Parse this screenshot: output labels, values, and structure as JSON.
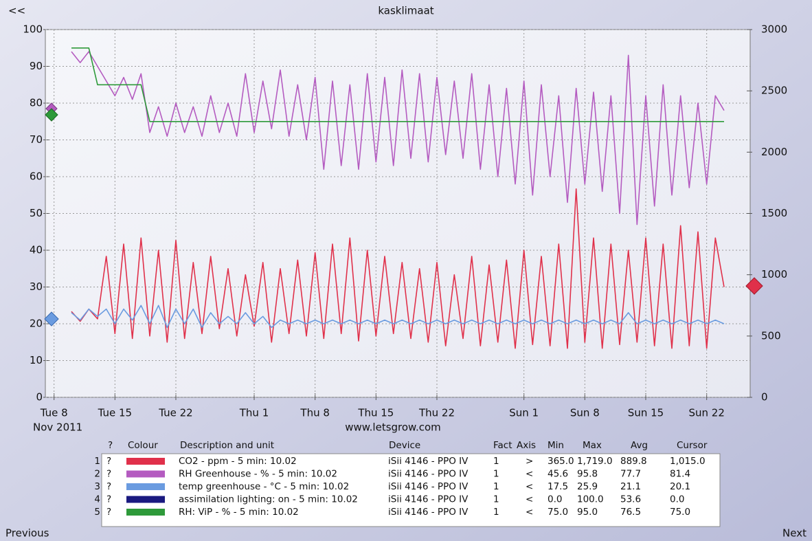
{
  "top_link": "<<",
  "chart_data": {
    "type": "line",
    "title": "kasklimaat",
    "subtitle": "www.letsgrow.com",
    "x_period_label": "Nov 2011",
    "x": [
      "2011-11-10",
      "2011-11-11",
      "2011-11-12",
      "2011-11-13",
      "2011-11-14",
      "2011-11-15",
      "2011-11-16",
      "2011-11-17",
      "2011-11-18",
      "2011-11-19",
      "2011-11-20",
      "2011-11-21",
      "2011-11-22",
      "2011-11-23",
      "2011-11-24",
      "2011-11-25",
      "2011-11-26",
      "2011-11-27",
      "2011-11-28",
      "2011-11-29",
      "2011-11-30",
      "2011-12-01",
      "2011-12-02",
      "2011-12-03",
      "2011-12-04",
      "2011-12-05",
      "2011-12-06",
      "2011-12-07",
      "2011-12-08",
      "2011-12-09",
      "2011-12-10",
      "2011-12-11",
      "2011-12-12",
      "2011-12-13",
      "2011-12-14",
      "2011-12-15",
      "2011-12-16",
      "2011-12-17",
      "2011-12-18",
      "2011-12-19",
      "2011-12-20",
      "2011-12-21",
      "2011-12-22",
      "2011-12-23",
      "2011-12-24",
      "2011-12-25",
      "2011-12-26",
      "2011-12-27",
      "2011-12-28",
      "2011-12-29",
      "2011-12-30",
      "2011-12-31",
      "2012-01-01",
      "2012-01-02",
      "2012-01-03",
      "2012-01-04",
      "2012-01-05",
      "2012-01-06",
      "2012-01-07",
      "2012-01-08",
      "2012-01-09",
      "2012-01-10",
      "2012-01-11",
      "2012-01-12",
      "2012-01-13",
      "2012-01-14",
      "2012-01-15",
      "2012-01-16",
      "2012-01-17",
      "2012-01-18",
      "2012-01-19",
      "2012-01-20",
      "2012-01-21",
      "2012-01-22",
      "2012-01-23",
      "2012-01-24"
    ],
    "series": [
      {
        "name": "CO2",
        "color": "#e0304a",
        "axis": "y2",
        "values": [
          700,
          620,
          720,
          640,
          1150,
          520,
          1250,
          480,
          1300,
          500,
          1200,
          450,
          1280,
          480,
          1100,
          520,
          1150,
          560,
          1050,
          500,
          1000,
          580,
          1100,
          450,
          1050,
          520,
          1120,
          500,
          1180,
          480,
          1250,
          520,
          1300,
          460,
          1200,
          500,
          1150,
          520,
          1100,
          480,
          1050,
          450,
          1100,
          420,
          1000,
          480,
          1150,
          420,
          1080,
          450,
          1120,
          400,
          1200,
          430,
          1150,
          420,
          1250,
          400,
          1700,
          450,
          1300,
          400,
          1250,
          430,
          1200,
          450,
          1300,
          420,
          1250,
          400,
          1400,
          420,
          1350,
          400,
          1300,
          900
        ]
      },
      {
        "name": "RH Greenhouse",
        "color": "#b45bc0",
        "values": [
          94,
          91,
          94,
          90,
          86,
          82,
          87,
          81,
          88,
          72,
          79,
          71,
          80,
          72,
          79,
          71,
          82,
          72,
          80,
          71,
          88,
          72,
          86,
          73,
          89,
          71,
          85,
          70,
          87,
          62,
          86,
          63,
          85,
          62,
          88,
          64,
          87,
          63,
          89,
          65,
          88,
          64,
          87,
          66,
          86,
          65,
          88,
          62,
          85,
          60,
          84,
          58,
          86,
          55,
          85,
          60,
          82,
          53,
          84,
          58,
          83,
          56,
          82,
          50,
          93,
          47,
          82,
          52,
          85,
          55,
          82,
          57,
          80,
          58,
          82,
          78
        ]
      },
      {
        "name": "temp greenhouse",
        "color": "#6a9be0",
        "values": [
          23,
          21,
          24,
          22,
          24,
          20,
          24,
          21,
          25,
          20,
          25,
          19,
          24,
          20,
          24,
          19,
          23,
          20,
          22,
          20,
          23,
          20,
          22,
          19,
          21,
          20,
          21,
          20,
          21,
          20,
          21,
          20,
          21,
          20,
          21,
          20,
          21,
          20,
          21,
          20,
          21,
          20,
          21,
          20,
          21,
          20,
          21,
          20,
          21,
          20,
          21,
          20,
          21,
          20,
          21,
          20,
          21,
          20,
          21,
          20,
          21,
          20,
          21,
          20,
          23,
          20,
          21,
          20,
          21,
          20,
          21,
          20,
          21,
          20,
          21,
          20
        ]
      },
      {
        "name": "RH: ViP",
        "color": "#2e9a3a",
        "values": [
          95,
          95,
          95,
          85,
          85,
          85,
          85,
          85,
          85,
          75,
          75,
          75,
          75,
          75,
          75,
          75,
          75,
          75,
          75,
          75,
          75,
          75,
          75,
          75,
          75,
          75,
          75,
          75,
          75,
          75,
          75,
          75,
          75,
          75,
          75,
          75,
          75,
          75,
          75,
          75,
          75,
          75,
          75,
          75,
          75,
          75,
          75,
          75,
          75,
          75,
          75,
          75,
          75,
          75,
          75,
          75,
          75,
          75,
          75,
          75,
          75,
          75,
          75,
          75,
          75,
          75,
          75,
          75,
          75,
          75,
          75,
          75,
          75,
          75,
          75,
          75
        ]
      }
    ],
    "xlim": [
      "2011-11-07",
      "2012-01-27"
    ],
    "xticks": [
      {
        "value": "2011-11-08",
        "label": "Tue 8"
      },
      {
        "value": "2011-11-15",
        "label": "Tue 15"
      },
      {
        "value": "2011-11-22",
        "label": "Tue 22"
      },
      {
        "value": "2011-12-01",
        "label": "Thu 1"
      },
      {
        "value": "2011-12-08",
        "label": "Thu 8"
      },
      {
        "value": "2011-12-15",
        "label": "Thu 15"
      },
      {
        "value": "2011-12-22",
        "label": "Thu 22"
      },
      {
        "value": "2012-01-01",
        "label": "Sun 1"
      },
      {
        "value": "2012-01-08",
        "label": "Sun 8"
      },
      {
        "value": "2012-01-15",
        "label": "Sun 15"
      },
      {
        "value": "2012-01-22",
        "label": "Sun 22"
      }
    ],
    "ylim": [
      0,
      100
    ],
    "yticks": [
      0,
      10,
      20,
      30,
      40,
      50,
      60,
      70,
      80,
      90,
      100
    ],
    "y2lim": [
      0,
      3000
    ],
    "y2ticks": [
      0,
      500,
      1000,
      1500,
      2000,
      2500,
      3000
    ],
    "grid": true
  },
  "table": {
    "header": [
      "?",
      "Colour",
      "Description and unit",
      "Device",
      "Fact",
      "Axis",
      "Min",
      "Max",
      "Avg",
      "Cursor"
    ],
    "rows": [
      {
        "index": "1",
        "help": "?",
        "colour": "#e0304a",
        "description": "CO2 - ppm - 5 min: 10.02",
        "device": "iSii 4146 - PPO IV",
        "fact": "1",
        "axis": ">",
        "min": "365.0",
        "max": "1,719.0",
        "avg": "889.8",
        "cursor": "1,015.0"
      },
      {
        "index": "2",
        "help": "?",
        "colour": "#b45bc0",
        "description": "RH Greenhouse - % - 5 min: 10.02",
        "device": "iSii 4146 - PPO IV",
        "fact": "1",
        "axis": "<",
        "min": "45.6",
        "max": "95.8",
        "avg": "77.7",
        "cursor": "81.4"
      },
      {
        "index": "3",
        "help": "?",
        "colour": "#6a9be0",
        "description": "temp greenhouse - °C - 5 min: 10.02",
        "device": "iSii 4146 - PPO IV",
        "fact": "1",
        "axis": "<",
        "min": "17.5",
        "max": "25.9",
        "avg": "21.1",
        "cursor": "20.1"
      },
      {
        "index": "4",
        "help": "?",
        "colour": "#1a1a80",
        "description": "assimilation lighting: on - 5 min: 10.02",
        "device": "iSii 4146 - PPO IV",
        "fact": "1",
        "axis": "<",
        "min": "0.0",
        "max": "100.0",
        "avg": "53.6",
        "cursor": "0.0"
      },
      {
        "index": "5",
        "help": "?",
        "colour": "#2e9a3a",
        "description": "RH: ViP - % - 5 min: 10.02",
        "device": "iSii 4146 - PPO IV",
        "fact": "1",
        "axis": "<",
        "min": "75.0",
        "max": "95.0",
        "avg": "76.5",
        "cursor": "75.0"
      }
    ]
  },
  "nav": {
    "previous": "Previous",
    "next": "Next"
  }
}
